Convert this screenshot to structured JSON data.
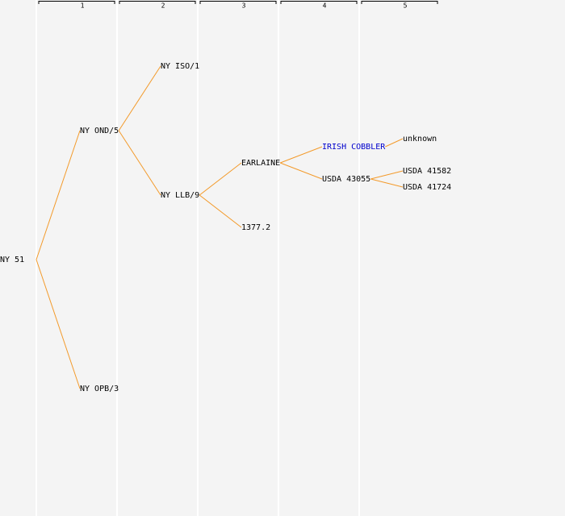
{
  "columns": [
    "1",
    "2",
    "3",
    "4",
    "5"
  ],
  "tree": {
    "label": "NY 51",
    "parents": [
      {
        "label": "NY OND/5",
        "parents": [
          {
            "label": "NY ISO/1"
          },
          {
            "label": "NY LLB/9",
            "parents": [
              {
                "label": "EARLAINE",
                "parents": [
                  {
                    "label": "IRISH COBBLER",
                    "color": "#0000cc",
                    "parents": [
                      {
                        "label": "unknown"
                      }
                    ]
                  },
                  {
                    "label": "USDA 43055",
                    "parents": [
                      {
                        "label": "USDA 41582"
                      },
                      {
                        "label": "USDA 41724"
                      }
                    ]
                  }
                ]
              },
              {
                "label": "1377.2"
              }
            ]
          }
        ]
      },
      {
        "label": "NY OPB/3"
      }
    ]
  }
}
